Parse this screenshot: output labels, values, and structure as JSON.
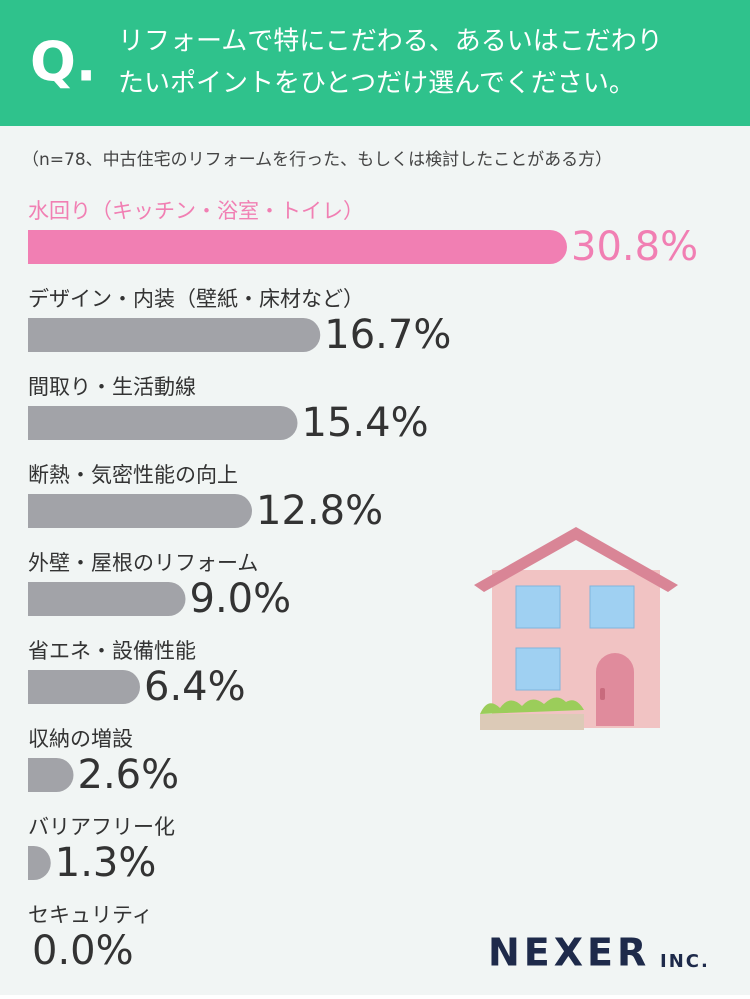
{
  "chart_data": {
    "type": "bar",
    "orientation": "horizontal",
    "q_label": "Q.",
    "title": [
      "リフォームで特にこだわる、あるいはこだわり",
      "たいポイントをひとつだけ選んでください。"
    ],
    "subtitle": "（n=78、中古住宅のリフォームを行った、もしくは検討したことがある方）",
    "categories": [
      "水回り（キッチン・浴室・トイレ）",
      "デザイン・内装（壁紙・床材など）",
      "間取り・生活動線",
      "断熱・気密性能の向上",
      "外壁・屋根のリフォーム",
      "省エネ・設備性能",
      "収納の増設",
      "バリアフリー化",
      "セキュリティ"
    ],
    "values": [
      30.8,
      16.7,
      15.4,
      12.8,
      9.0,
      6.4,
      2.6,
      1.3,
      0.0
    ],
    "value_labels": [
      "30.8%",
      "16.7%",
      "15.4%",
      "12.8%",
      "9.0%",
      "6.4%",
      "2.6%",
      "1.3%",
      "0.0%"
    ],
    "colors": [
      "#f17fb3",
      "#a2a3a8",
      "#a2a3a8",
      "#a2a3a8",
      "#a2a3a8",
      "#a2a3a8",
      "#a2a3a8",
      "#a2a3a8",
      "#a2a3a8"
    ],
    "xlim": [
      0,
      32
    ],
    "logo": "NEXER",
    "logo_suffix": "INC."
  }
}
